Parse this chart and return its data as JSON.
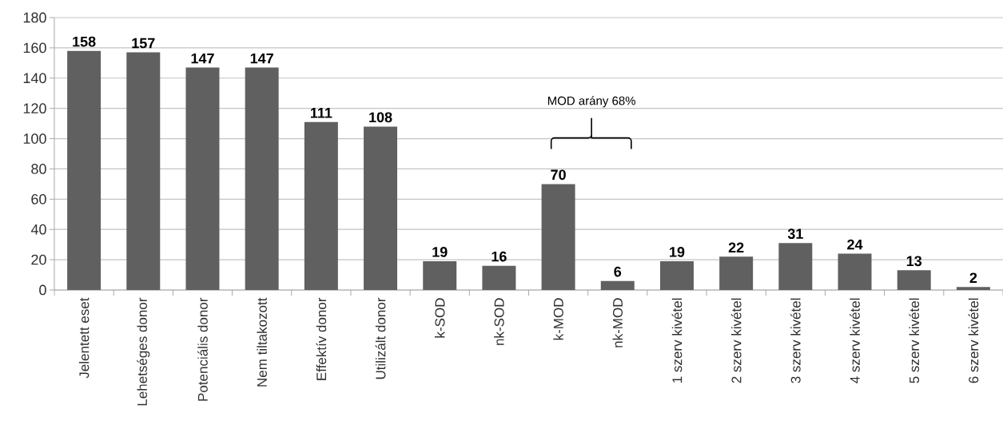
{
  "chart_data": {
    "type": "bar",
    "categories": [
      "Jelentett eset",
      "Lehetséges donor",
      "Potenciális donor",
      "Nem tiltakozott",
      "Effektív donor",
      "Utilizált donor",
      "k-SOD",
      "nk-SOD",
      "k-MOD",
      "nk-MOD",
      "1 szerv kivétel",
      "2 szerv kivétel",
      "3 szerv kivétel",
      "4 szerv kivétel",
      "5 szerv kivétel",
      "6 szerv kivétel"
    ],
    "values": [
      158,
      157,
      147,
      147,
      111,
      108,
      19,
      16,
      70,
      6,
      19,
      22,
      31,
      24,
      13,
      2
    ],
    "color": "#606060",
    "ylim": [
      0,
      180
    ],
    "yticks": [
      0,
      20,
      40,
      60,
      80,
      100,
      120,
      140,
      160,
      180
    ],
    "grid": "y",
    "data_labels": true,
    "annotations": [
      "MOD arány 68%"
    ]
  }
}
